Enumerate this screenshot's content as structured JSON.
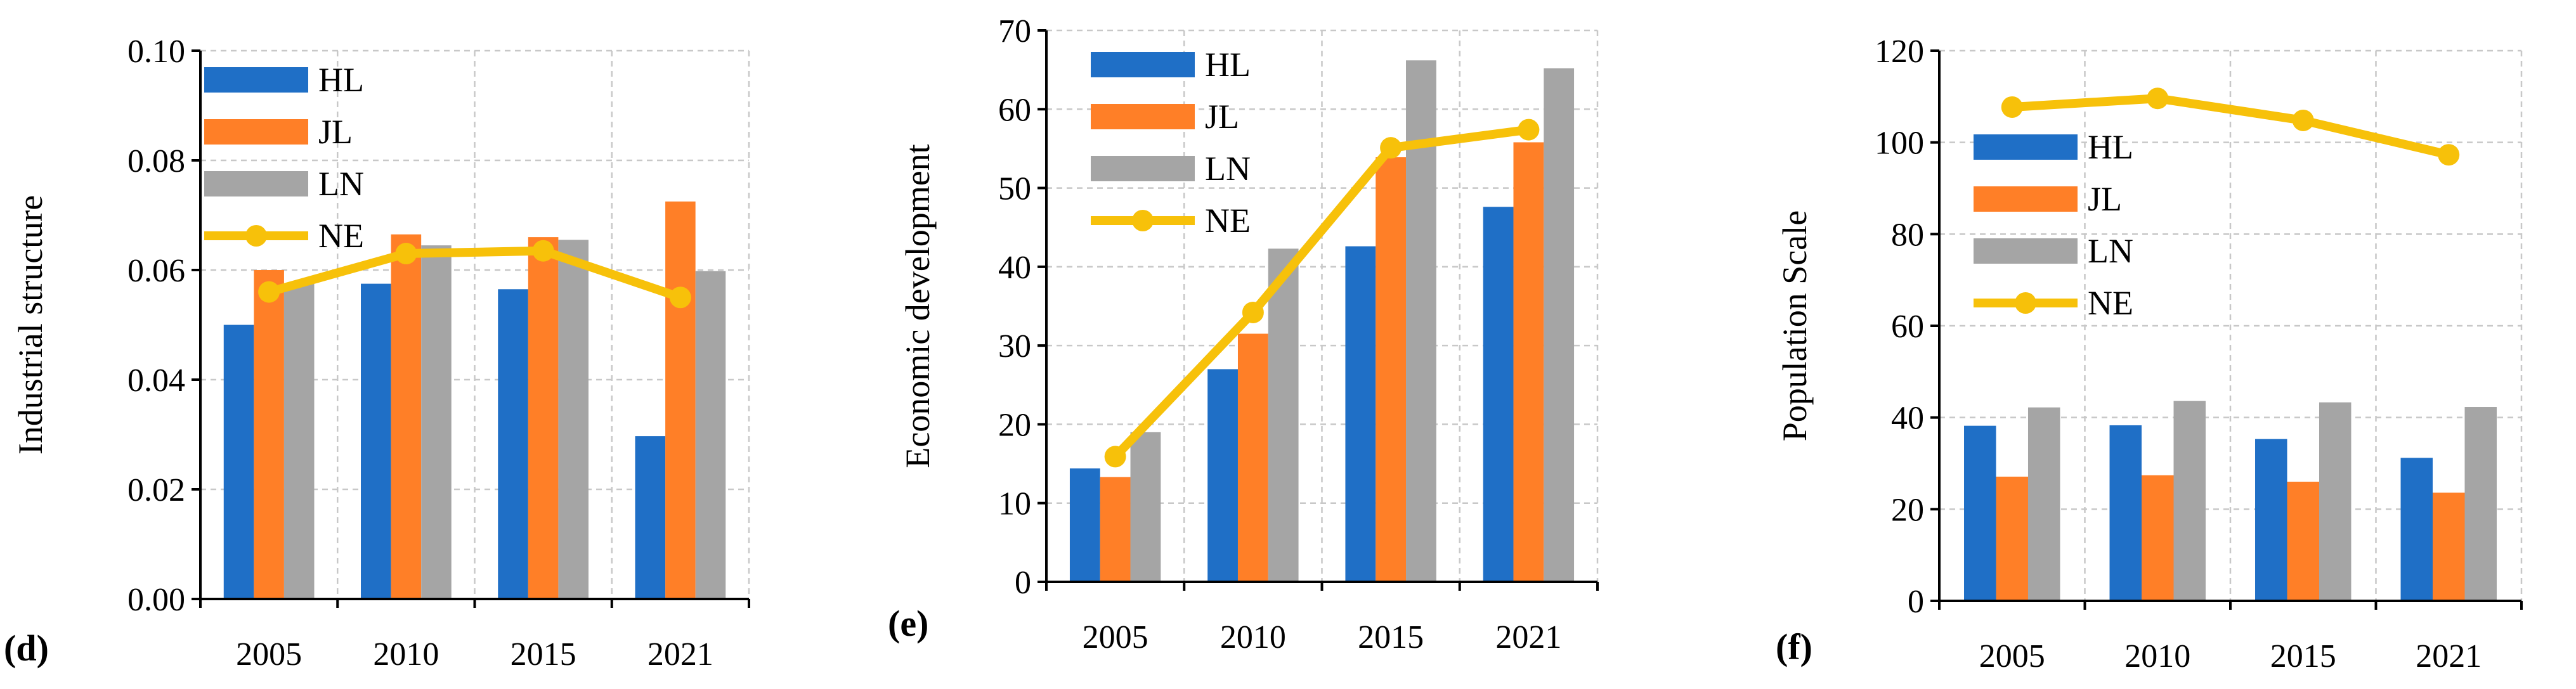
{
  "colors": {
    "HL": "#1f6fc6",
    "JL": "#ff7f27",
    "LN": "#a5a5a5",
    "NE": "#f7c10a"
  },
  "chart_data": [
    {
      "type": "bar",
      "panel_label": "(d)",
      "title": "",
      "xlabel": "",
      "ylabel": "Industrial structure",
      "categories": [
        "2005",
        "2010",
        "2015",
        "2021"
      ],
      "ylim": [
        0,
        0.1
      ],
      "yticks": [
        "0.00",
        "0.02",
        "0.04",
        "0.06",
        "0.08",
        "0.10"
      ],
      "legend_position": "top-left",
      "series": [
        {
          "name": "HL",
          "kind": "bar",
          "color": "#1f6fc6",
          "values": [
            0.05,
            0.0575,
            0.0565,
            0.0297
          ]
        },
        {
          "name": "JL",
          "kind": "bar",
          "color": "#ff7f27",
          "values": [
            0.06,
            0.0665,
            0.066,
            0.0725
          ]
        },
        {
          "name": "LN",
          "kind": "bar",
          "color": "#a5a5a5",
          "values": [
            0.0575,
            0.0645,
            0.0655,
            0.0598
          ]
        },
        {
          "name": "NE",
          "kind": "line",
          "color": "#f7c10a",
          "values": [
            0.056,
            0.063,
            0.0635,
            0.055
          ]
        }
      ]
    },
    {
      "type": "bar",
      "panel_label": "(e)",
      "title": "",
      "xlabel": "",
      "ylabel": "Economic development",
      "categories": [
        "2005",
        "2010",
        "2015",
        "2021"
      ],
      "ylim": [
        0,
        70
      ],
      "yticks": [
        "0",
        "10",
        "20",
        "30",
        "40",
        "50",
        "60",
        "70"
      ],
      "legend_position": "top-left",
      "series": [
        {
          "name": "HL",
          "kind": "bar",
          "color": "#1f6fc6",
          "values": [
            14.4,
            27.0,
            42.6,
            47.6
          ]
        },
        {
          "name": "JL",
          "kind": "bar",
          "color": "#ff7f27",
          "values": [
            13.3,
            31.5,
            53.9,
            55.8
          ]
        },
        {
          "name": "LN",
          "kind": "bar",
          "color": "#a5a5a5",
          "values": [
            19.0,
            42.3,
            66.2,
            65.2
          ]
        },
        {
          "name": "NE",
          "kind": "line",
          "color": "#f7c10a",
          "values": [
            15.9,
            34.2,
            55.1,
            57.4
          ]
        }
      ]
    },
    {
      "type": "bar",
      "panel_label": "(f)",
      "title": "",
      "xlabel": "",
      "ylabel": "Population Scale",
      "categories": [
        "2005",
        "2010",
        "2015",
        "2021"
      ],
      "ylim": [
        0,
        120
      ],
      "yticks": [
        "0",
        "20",
        "40",
        "60",
        "80",
        "100",
        "120"
      ],
      "legend_position": "top-left",
      "series": [
        {
          "name": "HL",
          "kind": "bar",
          "color": "#1f6fc6",
          "values": [
            38.2,
            38.3,
            35.3,
            31.2
          ]
        },
        {
          "name": "JL",
          "kind": "bar",
          "color": "#ff7f27",
          "values": [
            27.1,
            27.4,
            26.0,
            23.6
          ]
        },
        {
          "name": "LN",
          "kind": "bar",
          "color": "#a5a5a5",
          "values": [
            42.2,
            43.6,
            43.3,
            42.3
          ]
        },
        {
          "name": "NE",
          "kind": "line",
          "color": "#f7c10a",
          "values": [
            107.7,
            109.6,
            104.8,
            97.3
          ]
        }
      ]
    }
  ]
}
